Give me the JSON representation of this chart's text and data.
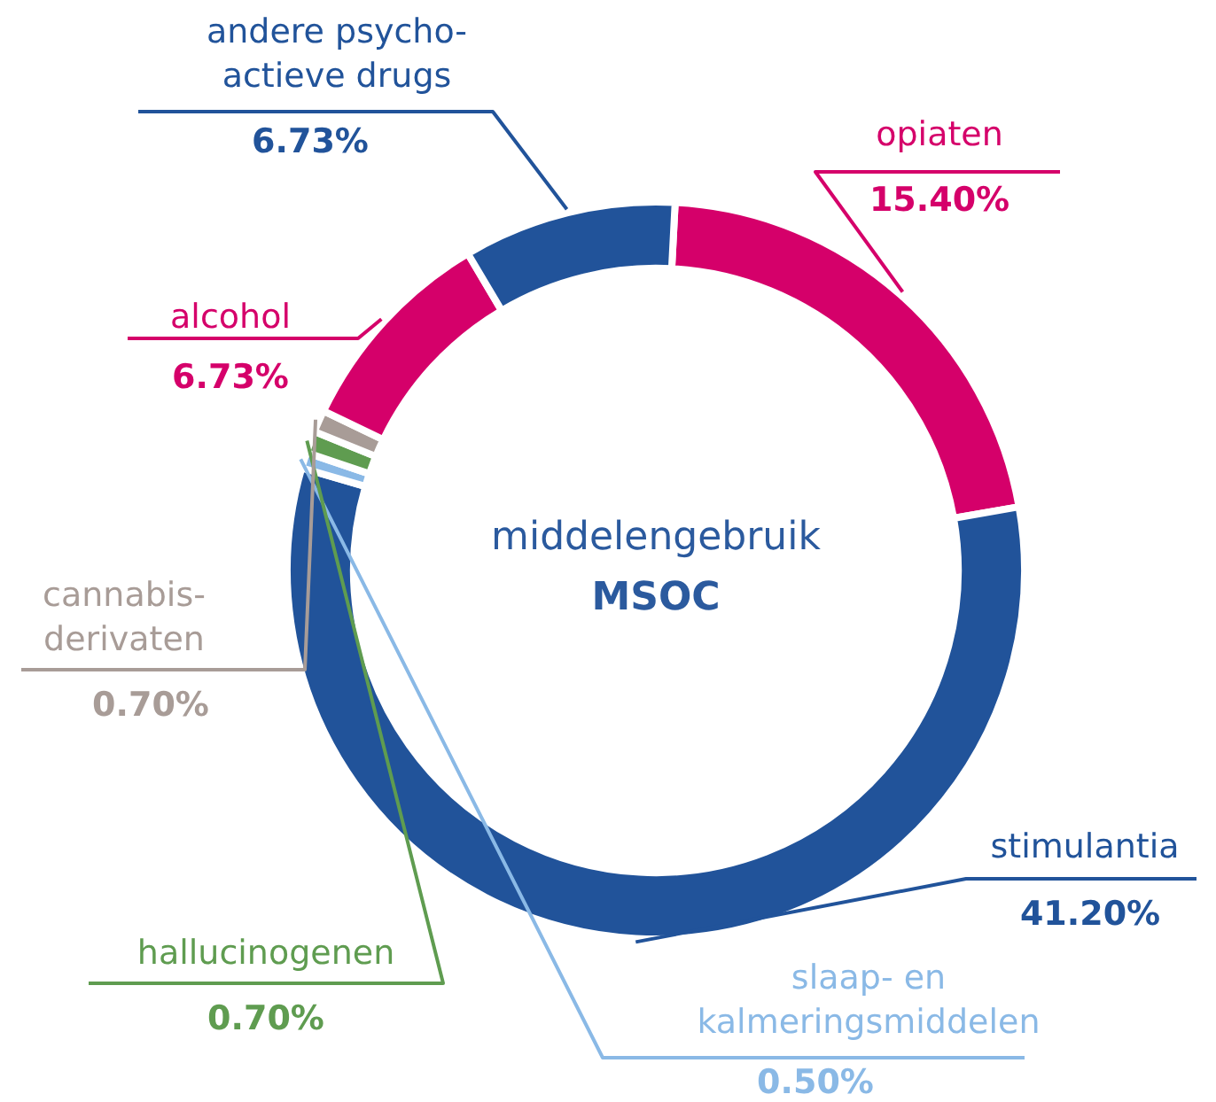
{
  "chart_data": {
    "type": "donut",
    "title": "middelengebruik",
    "subtitle": "MSOC",
    "categories": [
      "opiaten",
      "stimulantia",
      "slaap- en kalmeringsmiddelen",
      "hallucinogenen",
      "cannabis-derivaten",
      "alcohol",
      "andere psycho-actieve drugs"
    ],
    "values": [
      15.4,
      41.2,
      0.5,
      0.7,
      0.7,
      6.73,
      6.73
    ],
    "value_labels": [
      "15.40%",
      "41.20%",
      "0.50%",
      "0.70%",
      "0.70%",
      "6.73%",
      "6.73%"
    ],
    "colors": [
      "#d5006a",
      "#21539a",
      "#8ab9e6",
      "#5f9c50",
      "#a89c97",
      "#d5006a",
      "#21539a"
    ],
    "legend": false
  }
}
